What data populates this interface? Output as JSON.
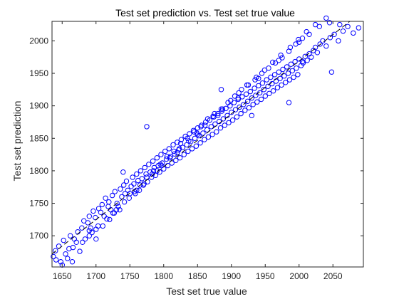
{
  "chart_data": {
    "type": "scatter",
    "title": "Test set prediction vs. Test set true value",
    "xlabel": "Test set true value",
    "ylabel": "Test set prediction",
    "xlim": [
      1635,
      2095
    ],
    "ylim": [
      1652,
      2030
    ],
    "xticks": [
      1650,
      1700,
      1750,
      1800,
      1850,
      1900,
      1950,
      2000,
      2050
    ],
    "yticks": [
      1700,
      1750,
      1800,
      1850,
      1900,
      1950,
      2000
    ],
    "grid": false,
    "marker": "open-circle",
    "marker_color": "#0000ff",
    "reference_line": {
      "style": "dashed",
      "color": "#000000",
      "from": [
        1635,
        1672
      ],
      "to": [
        2075,
        2030
      ]
    },
    "series": [
      {
        "x": [
          1637,
          1641,
          1645,
          1648,
          1652,
          1655,
          1658,
          1662,
          1666,
          1668,
          1671,
          1673,
          1676,
          1679,
          1682,
          1684,
          1688,
          1690,
          1692,
          1694,
          1696,
          1699,
          1703,
          1704,
          1707,
          1709,
          1712,
          1714,
          1716,
          1718,
          1719,
          1722,
          1724,
          1727,
          1728,
          1731,
          1733,
          1736,
          1738,
          1741,
          1743,
          1745,
          1747,
          1749,
          1752,
          1754,
          1756,
          1758,
          1760,
          1762,
          1764,
          1766,
          1768,
          1770,
          1772,
          1774,
          1776,
          1778,
          1780,
          1782,
          1784,
          1786,
          1788,
          1790,
          1792,
          1794,
          1796,
          1798,
          1800,
          1802,
          1804,
          1806,
          1808,
          1810,
          1812,
          1814,
          1816,
          1818,
          1820,
          1822,
          1824,
          1826,
          1828,
          1830,
          1832,
          1834,
          1836,
          1838,
          1840,
          1842,
          1844,
          1846,
          1848,
          1850,
          1852,
          1854,
          1856,
          1858,
          1860,
          1862,
          1864,
          1866,
          1868,
          1870,
          1872,
          1874,
          1876,
          1878,
          1880,
          1882,
          1884,
          1886,
          1888,
          1890,
          1892,
          1894,
          1896,
          1898,
          1900,
          1902,
          1904,
          1906,
          1908,
          1910,
          1912,
          1914,
          1916,
          1918,
          1920,
          1922,
          1924,
          1926,
          1928,
          1930,
          1932,
          1934,
          1936,
          1938,
          1940,
          1942,
          1944,
          1946,
          1948,
          1950,
          1952,
          1954,
          1956,
          1958,
          1960,
          1962,
          1964,
          1966,
          1968,
          1970,
          1972,
          1974,
          1976,
          1978,
          1980,
          1982,
          1984,
          1986,
          1988,
          1990,
          1992,
          1994,
          1996,
          1998,
          2000,
          2003,
          2006,
          2009,
          2012,
          2015,
          2018,
          2021,
          2024,
          2027,
          2031,
          2035,
          2040,
          2046,
          2052,
          2058,
          2065,
          2072,
          2080,
          2088,
          1640,
          1660,
          1680,
          1700,
          1720,
          1735,
          1750,
          1765,
          1775,
          1785,
          1795,
          1805,
          1815,
          1825,
          1835,
          1845,
          1855,
          1865,
          1875,
          1885,
          1895,
          1905,
          1915,
          1925,
          1935,
          1945,
          1955,
          1965,
          1975,
          1985,
          1995,
          2005,
          2015,
          2030,
          2045,
          2060,
          1690,
          1710,
          1725,
          1742,
          1757,
          1771,
          1783,
          1797,
          1809,
          1823,
          1837,
          1849,
          1861,
          1873,
          1887,
          1899,
          1911,
          1923,
          1937,
          1949,
          1961,
          1973,
          1987,
          1999,
          2011,
          2024,
          1700,
          1730,
          1760,
          1790,
          1820,
          1850,
          1880,
          1910,
          1940,
          1970,
          2000,
          2040,
          1775,
          1740,
          1650,
          1665,
          1690,
          1885,
          1930,
          1985,
          2048,
          2005
        ],
        "y": [
          1668,
          1663,
          1684,
          1660,
          1693,
          1672,
          1665,
          1700,
          1682,
          1695,
          1690,
          1706,
          1676,
          1712,
          1723,
          1695,
          1720,
          1730,
          1712,
          1705,
          1738,
          1728,
          1715,
          1742,
          1736,
          1748,
          1730,
          1758,
          1726,
          1745,
          1752,
          1740,
          1762,
          1735,
          1768,
          1750,
          1745,
          1772,
          1760,
          1778,
          1765,
          1784,
          1770,
          1758,
          1776,
          1790,
          1780,
          1765,
          1795,
          1785,
          1770,
          1800,
          1788,
          1778,
          1805,
          1795,
          1783,
          1810,
          1798,
          1790,
          1815,
          1805,
          1793,
          1820,
          1808,
          1798,
          1825,
          1812,
          1803,
          1830,
          1818,
          1808,
          1834,
          1822,
          1812,
          1840,
          1826,
          1816,
          1844,
          1832,
          1820,
          1848,
          1836,
          1825,
          1853,
          1840,
          1830,
          1857,
          1845,
          1834,
          1862,
          1850,
          1838,
          1866,
          1854,
          1843,
          1870,
          1858,
          1848,
          1875,
          1863,
          1852,
          1878,
          1868,
          1856,
          1883,
          1872,
          1860,
          1888,
          1876,
          1866,
          1892,
          1880,
          1870,
          1896,
          1885,
          1874,
          1900,
          1890,
          1878,
          1905,
          1894,
          1883,
          1910,
          1898,
          1888,
          1914,
          1902,
          1893,
          1918,
          1907,
          1897,
          1922,
          1912,
          1902,
          1927,
          1916,
          1906,
          1931,
          1920,
          1910,
          1935,
          1925,
          1915,
          1940,
          1930,
          1919,
          1944,
          1934,
          1923,
          1948,
          1938,
          1928,
          1952,
          1942,
          1932,
          1956,
          1946,
          1936,
          1960,
          1950,
          1940,
          1964,
          1954,
          1944,
          1968,
          1958,
          1948,
          1972,
          1962,
          1966,
          1976,
          1970,
          1980,
          1975,
          1985,
          1990,
          1982,
          1995,
          2000,
          1992,
          2005,
          2010,
          2000,
          2015,
          2022,
          2012,
          2020,
          1677,
          1680,
          1690,
          1695,
          1725,
          1740,
          1765,
          1778,
          1790,
          1800,
          1810,
          1822,
          1830,
          1842,
          1850,
          1860,
          1868,
          1880,
          1888,
          1895,
          1905,
          1915,
          1925,
          1932,
          1940,
          1950,
          1958,
          1966,
          1974,
          1984,
          1995,
          2004,
          2010,
          2022,
          2028,
          2025,
          1700,
          1715,
          1735,
          1752,
          1768,
          1780,
          1795,
          1808,
          1820,
          1834,
          1846,
          1858,
          1870,
          1884,
          1895,
          1908,
          1920,
          1932,
          1944,
          1955,
          1967,
          1978,
          1990,
          2002,
          2014,
          2025,
          1710,
          1740,
          1770,
          1800,
          1828,
          1856,
          1885,
          1912,
          1942,
          1970,
          1998,
          2035,
          1868,
          1798,
          1655,
          1660,
          1708,
          1925,
          1885,
          1905,
          1952,
          1968
        ]
      }
    ]
  }
}
